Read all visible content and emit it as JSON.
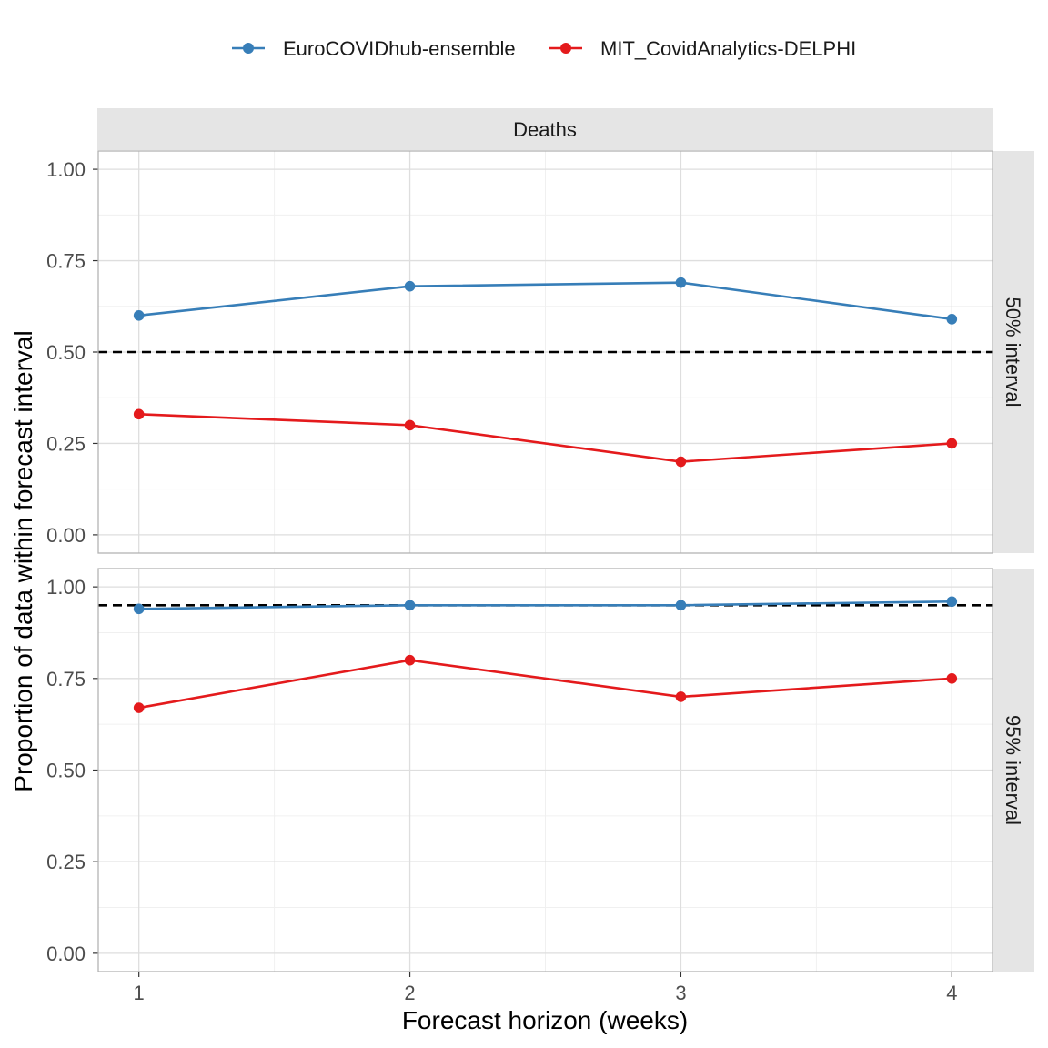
{
  "chart_data": {
    "type": "line",
    "facet_title": "Deaths",
    "xlabel": "Forecast horizon (weeks)",
    "ylabel": "Proportion of data within forecast interval",
    "x": [
      1,
      2,
      3,
      4
    ],
    "x_ticks": [
      "1",
      "2",
      "3",
      "4"
    ],
    "xlim": [
      0.85,
      4.15
    ],
    "y_ticks": [
      "0.00",
      "0.25",
      "0.50",
      "0.75",
      "1.00"
    ],
    "ylim": [
      -0.05,
      1.05
    ],
    "grid": true,
    "legend_position": "top",
    "series_colors": {
      "EuroCOVIDhub-ensemble": "#377EB8",
      "MIT_CovidAnalytics-DELPHI": "#E41A1C"
    },
    "panels": [
      {
        "label": "50% interval",
        "reference_line": 0.5,
        "series": [
          {
            "name": "EuroCOVIDhub-ensemble",
            "values": [
              0.6,
              0.68,
              0.69,
              0.59
            ]
          },
          {
            "name": "MIT_CovidAnalytics-DELPHI",
            "values": [
              0.33,
              0.3,
              0.2,
              0.25
            ]
          }
        ]
      },
      {
        "label": "95% interval",
        "reference_line": 0.95,
        "series": [
          {
            "name": "EuroCOVIDhub-ensemble",
            "values": [
              0.94,
              0.95,
              0.95,
              0.96
            ]
          },
          {
            "name": "MIT_CovidAnalytics-DELPHI",
            "values": [
              0.67,
              0.8,
              0.7,
              0.75
            ]
          }
        ]
      }
    ]
  }
}
